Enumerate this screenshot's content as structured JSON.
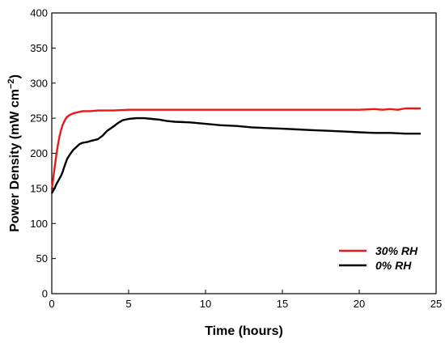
{
  "chart_data": {
    "type": "line",
    "title": "",
    "xlabel": "Time (hours)",
    "ylabel_main": "Power Density (mW cm",
    "ylabel_sup": "−2",
    "ylabel_close": ")",
    "xlim": [
      0,
      25
    ],
    "ylim": [
      0,
      400
    ],
    "xticks": [
      0,
      5,
      10,
      15,
      20,
      25
    ],
    "yticks": [
      0,
      50,
      100,
      150,
      200,
      250,
      300,
      350,
      400
    ],
    "grid": false,
    "legend_position": "bottom-right",
    "series": [
      {
        "name": "30% RH",
        "color": "#e8191a",
        "x": [
          0,
          0.1,
          0.2,
          0.3,
          0.4,
          0.5,
          0.6,
          0.7,
          0.8,
          0.9,
          1.0,
          1.2,
          1.4,
          1.6,
          1.8,
          2.0,
          2.5,
          3.0,
          4.0,
          5.0,
          8.0,
          10.0,
          12.0,
          15.0,
          18.0,
          20.0,
          21.0,
          21.5,
          22.0,
          22.5,
          23.0,
          24.0
        ],
        "y": [
          148,
          165,
          182,
          198,
          212,
          224,
          233,
          240,
          245,
          249,
          252,
          255,
          257,
          258,
          259,
          260,
          260,
          261,
          261,
          262,
          262,
          262,
          262,
          262,
          262,
          262,
          263,
          262,
          263,
          262,
          264,
          264
        ]
      },
      {
        "name": "0% RH",
        "color": "#000000",
        "x": [
          0,
          0.1,
          0.2,
          0.3,
          0.4,
          0.5,
          0.6,
          0.7,
          0.8,
          0.9,
          1.0,
          1.2,
          1.4,
          1.6,
          1.8,
          2.0,
          2.3,
          2.6,
          3.0,
          3.3,
          3.6,
          4.0,
          4.3,
          4.6,
          5.0,
          5.5,
          6.0,
          6.5,
          7.0,
          7.5,
          8.0,
          9.0,
          10.0,
          11.0,
          12.0,
          13.0,
          14.0,
          15.0,
          16.0,
          17.0,
          18.0,
          19.0,
          20.0,
          21.0,
          22.0,
          23.0,
          24.0
        ],
        "y": [
          143,
          147,
          151,
          156,
          160,
          164,
          168,
          173,
          180,
          186,
          192,
          199,
          205,
          209,
          213,
          215,
          216,
          218,
          220,
          225,
          232,
          238,
          243,
          247,
          249,
          250,
          250,
          249,
          248,
          246,
          245,
          244,
          242,
          240,
          239,
          237,
          236,
          235,
          234,
          233,
          232,
          231,
          230,
          229,
          229,
          228,
          228
        ]
      }
    ]
  }
}
